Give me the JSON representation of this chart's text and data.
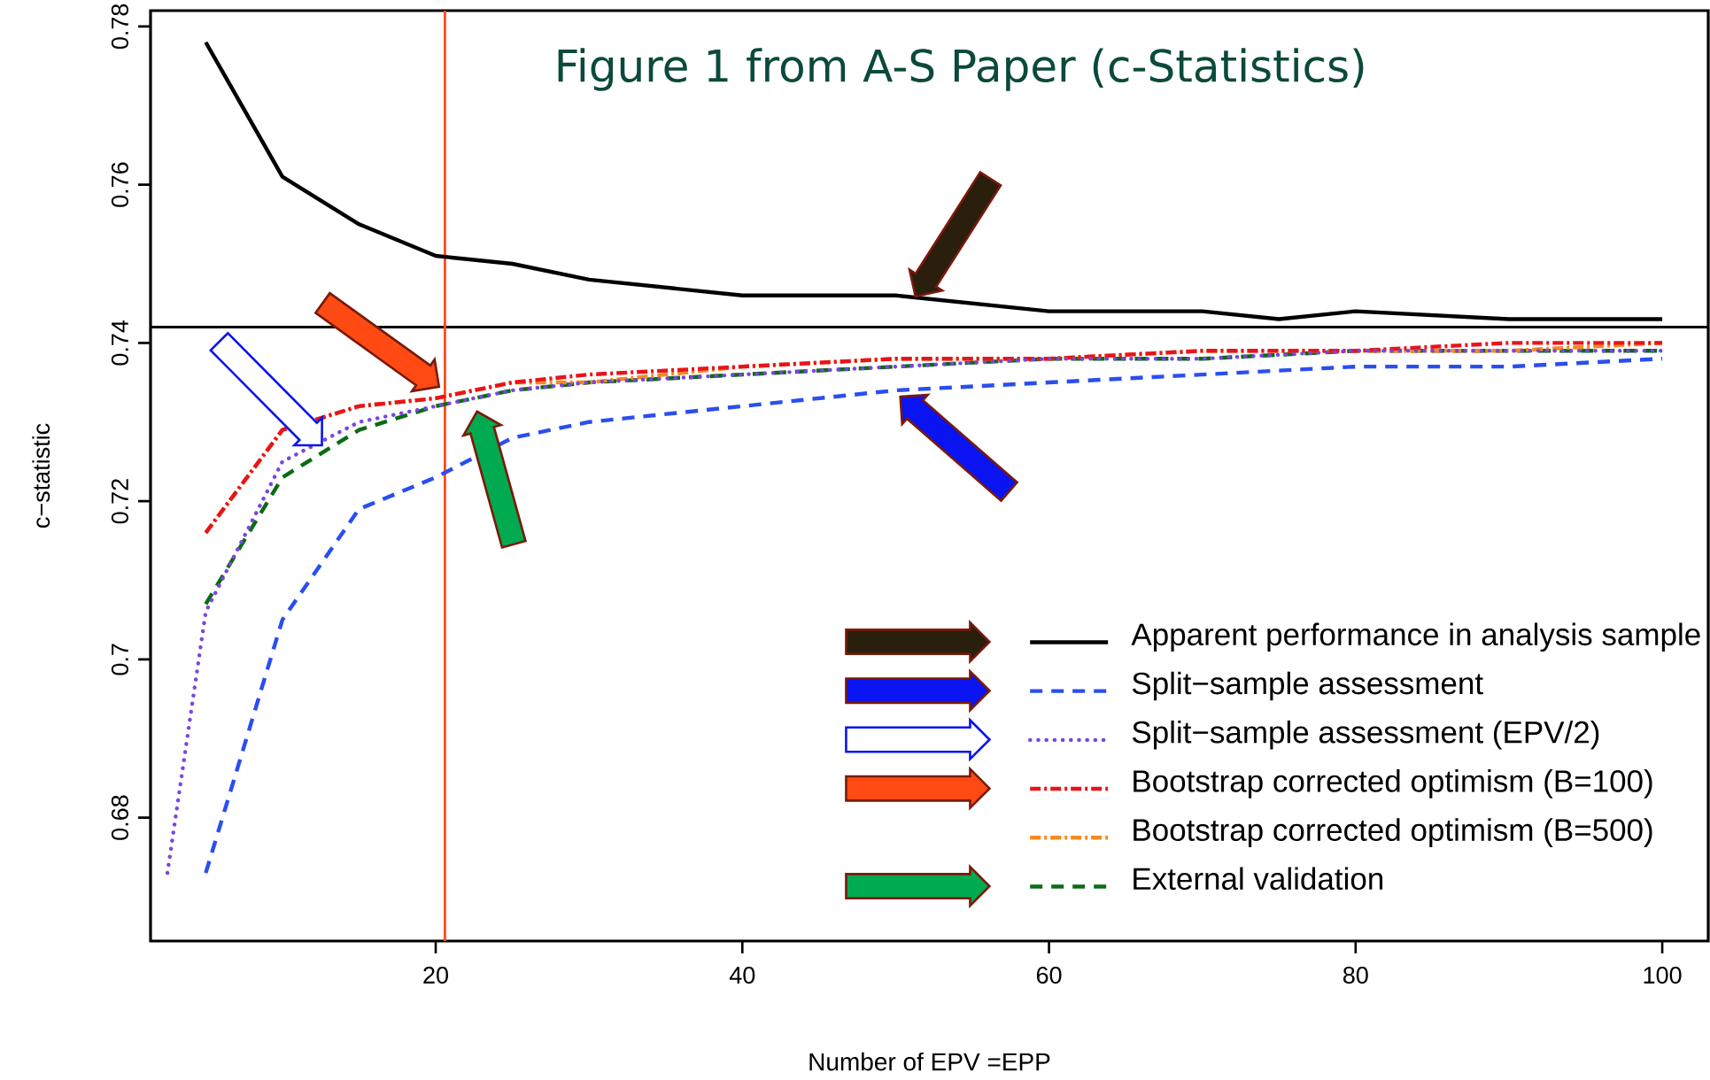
{
  "chart_data": {
    "type": "line",
    "title": "Figure 1 from A-S Paper (c-Statistics)",
    "xlabel": "Number of EPV  =EPP",
    "ylabel": "c−statistic",
    "xlim": [
      1.4,
      103
    ],
    "ylim": [
      0.6644,
      0.782
    ],
    "xticks": [
      20,
      40,
      60,
      80,
      100
    ],
    "yticks": [
      0.68,
      0.7,
      0.72,
      0.74,
      0.76,
      0.78
    ],
    "grid": false,
    "legend": "bottom right",
    "marker": "none",
    "series": [
      {
        "name": "Apparent performance in analysis sample",
        "color": "#000000",
        "line_style": "solid",
        "x": [
          5,
          10,
          15,
          20,
          25,
          30,
          40,
          50,
          60,
          70,
          75,
          80,
          90,
          100
        ],
        "values": [
          0.778,
          0.761,
          0.755,
          0.751,
          0.75,
          0.748,
          0.746,
          0.746,
          0.744,
          0.744,
          0.743,
          0.744,
          0.743,
          0.743
        ]
      },
      {
        "name": "Split−sample assessment",
        "color": "#2a4ef0",
        "line_style": "dashed",
        "x": [
          5,
          10,
          15,
          20,
          25,
          30,
          40,
          50,
          60,
          70,
          80,
          90,
          100
        ],
        "values": [
          0.673,
          0.705,
          0.719,
          0.723,
          0.728,
          0.73,
          0.732,
          0.734,
          0.735,
          0.736,
          0.737,
          0.737,
          0.738
        ]
      },
      {
        "name": "Split−sample assessment (EPV/2)",
        "color": "#7b45e0",
        "line_style": "dotted",
        "x": [
          2.5,
          5,
          10,
          15,
          20,
          25,
          30,
          40,
          50,
          60,
          70,
          80,
          90,
          100
        ],
        "values": [
          0.673,
          0.706,
          0.725,
          0.73,
          0.732,
          0.734,
          0.735,
          0.736,
          0.737,
          0.738,
          0.738,
          0.739,
          0.739,
          0.739
        ]
      },
      {
        "name": "Bootstrap corrected optimism (B=100)",
        "color": "#e8141c",
        "line_style": "dashdot",
        "x": [
          5,
          10,
          15,
          20,
          25,
          30,
          40,
          50,
          60,
          70,
          80,
          90,
          100
        ],
        "values": [
          0.716,
          0.729,
          0.732,
          0.733,
          0.735,
          0.736,
          0.737,
          0.738,
          0.738,
          0.739,
          0.739,
          0.74,
          0.74
        ]
      },
      {
        "name": "Bootstrap corrected optimism (B=500)",
        "color": "#f58a1f",
        "line_style": "dashdot",
        "x": [
          5,
          10,
          15,
          20,
          25,
          30,
          40,
          50,
          60,
          70,
          80,
          90,
          100
        ],
        "values": [
          0.716,
          0.729,
          0.732,
          0.733,
          0.735,
          0.735,
          0.737,
          0.738,
          0.738,
          0.739,
          0.739,
          0.739,
          0.74
        ]
      },
      {
        "name": "External validation",
        "color": "#0b6b14",
        "line_style": "dashed",
        "x": [
          5,
          10,
          15,
          20,
          25,
          30,
          40,
          50,
          60,
          70,
          80,
          90,
          100
        ],
        "values": [
          0.707,
          0.723,
          0.729,
          0.732,
          0.734,
          0.735,
          0.736,
          0.737,
          0.738,
          0.738,
          0.739,
          0.739,
          0.739
        ]
      }
    ],
    "ref_lines": [
      {
        "axis": "y",
        "value": 0.742,
        "color": "#000000"
      },
      {
        "axis": "x",
        "value": 20.6,
        "color": "#ff4a1a"
      }
    ]
  }
}
